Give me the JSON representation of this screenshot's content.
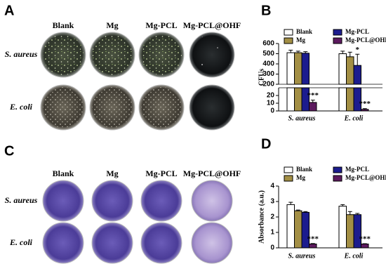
{
  "panels": {
    "A": {
      "label": "A",
      "columns": [
        "Blank",
        "Mg",
        "Mg-PCL",
        "Mg-PCL@OHF"
      ],
      "rows": [
        "S. aureus",
        "E. coli"
      ]
    },
    "C": {
      "label": "C",
      "columns": [
        "Blank",
        "Mg",
        "Mg-PCL",
        "Mg-PCL@OHF"
      ],
      "rows": [
        "S. aureus",
        "E. coli"
      ]
    }
  },
  "chart_data": [
    {
      "panel_label": "B",
      "type": "bar",
      "y_label": "CFUs",
      "categories": [
        "S. aureus",
        "E. coli"
      ],
      "series": [
        {
          "name": "Blank",
          "color": "#ffffff",
          "values": [
            510,
            500
          ],
          "errors": [
            25,
            25
          ]
        },
        {
          "name": "Mg",
          "color": "#a38f45",
          "values": [
            510,
            470
          ],
          "errors": [
            15,
            45
          ]
        },
        {
          "name": "Mg-PCL",
          "color": "#1c1c8e",
          "values": [
            505,
            385
          ],
          "errors": [
            15,
            110
          ],
          "significance": [
            null,
            "*"
          ]
        },
        {
          "name": "Mg-PCL@OHF",
          "color": "#5c1a5e",
          "values": [
            11,
            2
          ],
          "errors": [
            3,
            1
          ],
          "significance": [
            "***",
            "***"
          ]
        }
      ],
      "ylim": [
        0,
        600
      ],
      "ybreak": [
        30,
        200
      ],
      "yticks": [
        0,
        10,
        20,
        200,
        300,
        400,
        500,
        600
      ]
    },
    {
      "panel_label": "D",
      "type": "bar",
      "y_label": "Absorbance (a.u.)",
      "categories": [
        "S. aureus",
        "E. coli"
      ],
      "series": [
        {
          "name": "Blank",
          "color": "#ffffff",
          "values": [
            2.8,
            2.7
          ],
          "errors": [
            0.15,
            0.1
          ]
        },
        {
          "name": "Mg",
          "color": "#a38f45",
          "values": [
            2.4,
            2.15
          ],
          "errors": [
            0.05,
            0.2
          ]
        },
        {
          "name": "Mg-PCL",
          "color": "#1c1c8e",
          "values": [
            2.3,
            2.15
          ],
          "errors": [
            0.05,
            0.08
          ]
        },
        {
          "name": "Mg-PCL@OHF",
          "color": "#5c1a5e",
          "values": [
            0.25,
            0.25
          ],
          "errors": [
            0.03,
            0.02
          ],
          "significance": [
            "***",
            "***"
          ]
        }
      ],
      "ylim": [
        0,
        4
      ],
      "yticks": [
        0,
        1,
        2,
        3,
        4
      ]
    }
  ]
}
